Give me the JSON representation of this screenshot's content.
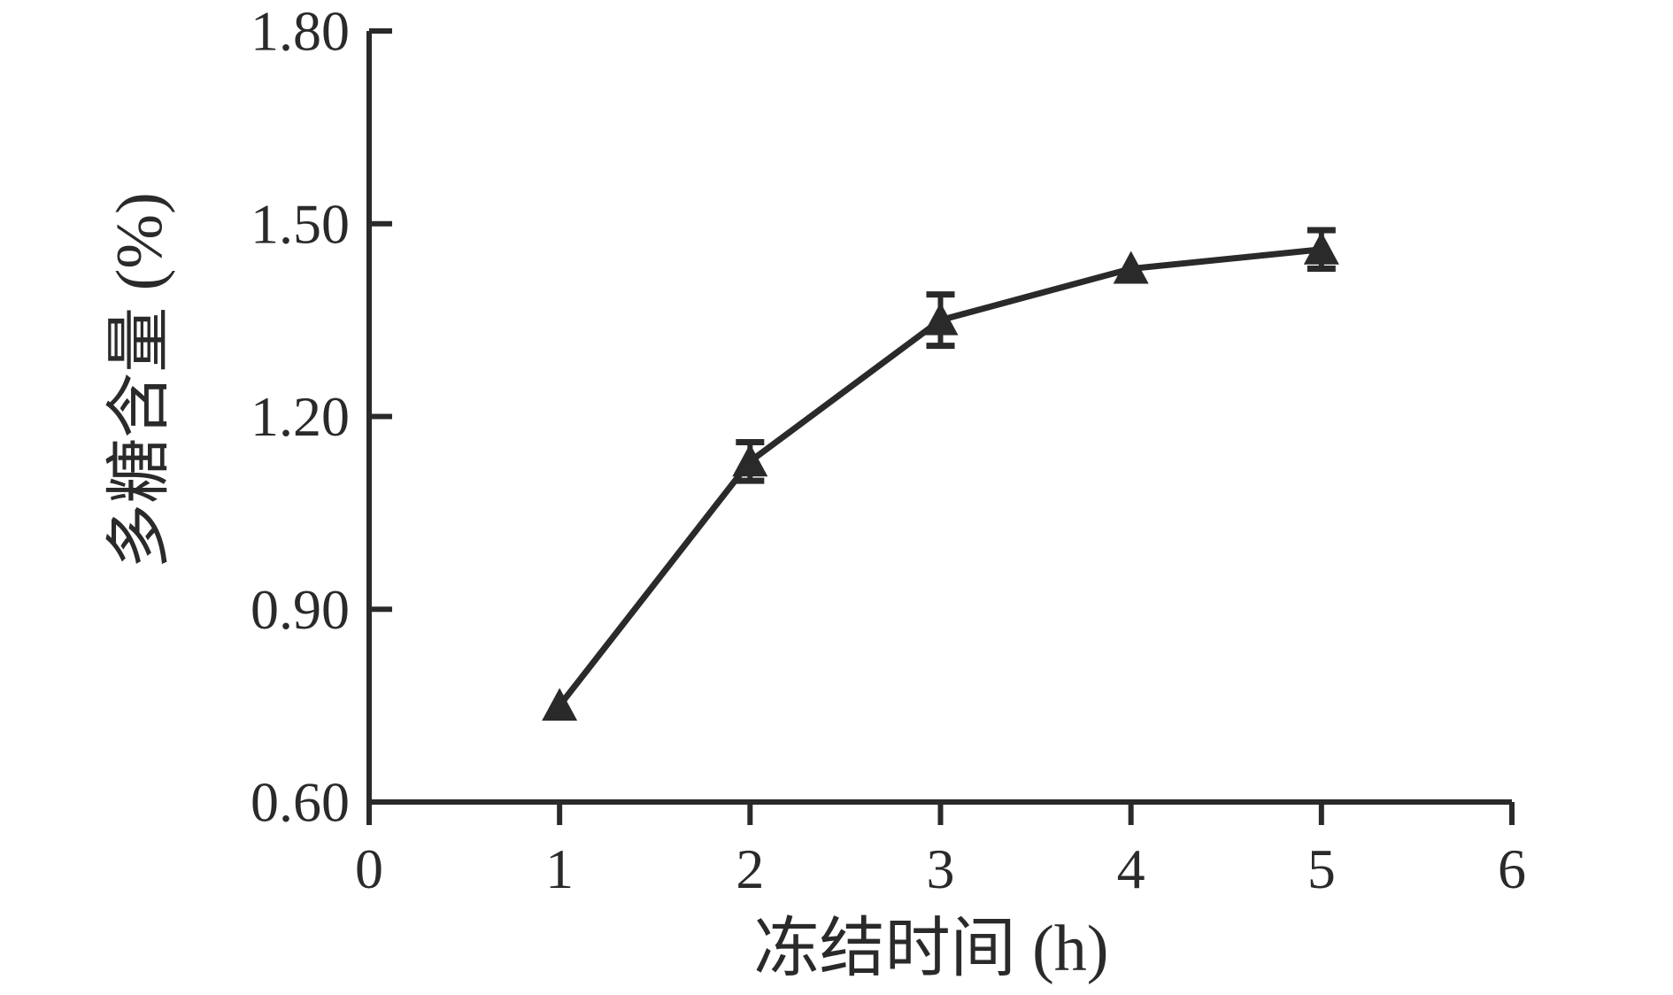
{
  "chart_data": {
    "type": "line",
    "title": "",
    "xlabel": "冻结时间 (h)",
    "ylabel": "多糖含量 (%)",
    "series": [
      {
        "name": "polysaccharide-content",
        "x": [
          1,
          2,
          3,
          4,
          5
        ],
        "y": [
          0.75,
          1.13,
          1.35,
          1.43,
          1.46
        ],
        "yerr": [
          0,
          0.03,
          0.04,
          0,
          0.03
        ],
        "marker": "filled-triangle-up",
        "color": "#2a2a2a"
      }
    ],
    "xlim": [
      0,
      6
    ],
    "ylim": [
      0.6,
      1.8
    ],
    "xticks": [
      {
        "label": "0",
        "value": 0
      },
      {
        "label": "1",
        "value": 1
      },
      {
        "label": "2",
        "value": 2
      },
      {
        "label": "3",
        "value": 3
      },
      {
        "label": "4",
        "value": 4
      },
      {
        "label": "5",
        "value": 5
      },
      {
        "label": "6",
        "value": 6
      }
    ],
    "yticks": [
      {
        "label": "0.60",
        "value": 0.6
      },
      {
        "label": "0.90",
        "value": 0.9
      },
      {
        "label": "1.20",
        "value": 1.2
      },
      {
        "label": "1.50",
        "value": 1.5
      },
      {
        "label": "1.80",
        "value": 1.8
      }
    ],
    "grid": false,
    "legend": "none",
    "axis_color": "#2a2a2a",
    "background_color": "#ffffff"
  }
}
